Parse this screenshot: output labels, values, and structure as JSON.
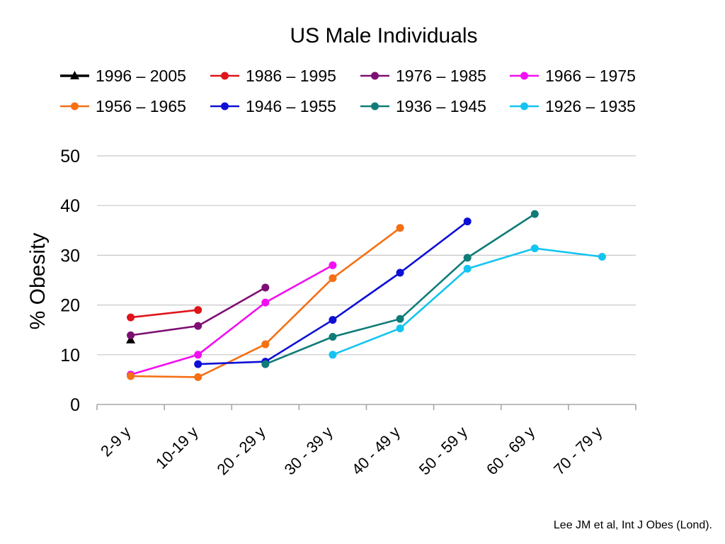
{
  "chart_data": {
    "type": "line",
    "title": "US Male Individuals",
    "xlabel": "",
    "ylabel": "% Obesity",
    "ylim": [
      0,
      50
    ],
    "yticks": [
      0,
      10,
      20,
      30,
      40,
      50
    ],
    "grid": true,
    "legend_position": "top",
    "categories": [
      "2-9 y",
      "10-19 y",
      "20 - 29 y",
      "30 - 39 y",
      "40 - 49 y",
      "50 - 59 y",
      "60 - 69 y",
      "70 - 79 y"
    ],
    "series": [
      {
        "name": "1996 – 2005",
        "color": "#000000",
        "marker": "triangle",
        "values": [
          13.0,
          null,
          null,
          null,
          null,
          null,
          null,
          null
        ]
      },
      {
        "name": "1986 – 1995",
        "color": "#e0141b",
        "marker": "circle",
        "values": [
          17.5,
          19.0,
          null,
          null,
          null,
          null,
          null,
          null
        ]
      },
      {
        "name": "1976 – 1985",
        "color": "#7d0f73",
        "marker": "circle",
        "values": [
          13.9,
          15.8,
          23.5,
          null,
          null,
          null,
          null,
          null
        ]
      },
      {
        "name": "1966 – 1975",
        "color": "#f20ff2",
        "marker": "circle",
        "values": [
          6.0,
          10.0,
          20.5,
          28.0,
          null,
          null,
          null,
          null
        ]
      },
      {
        "name": "1956 – 1965",
        "color": "#f57014",
        "marker": "circle",
        "values": [
          5.7,
          5.5,
          12.1,
          25.4,
          35.5,
          null,
          null,
          null
        ]
      },
      {
        "name": "1946 – 1955",
        "color": "#0d0fd6",
        "marker": "circle",
        "values": [
          null,
          8.1,
          8.6,
          17.0,
          26.5,
          36.8,
          null,
          null
        ]
      },
      {
        "name": "1936 – 1945",
        "color": "#0f7c78",
        "marker": "circle",
        "values": [
          null,
          null,
          8.1,
          13.6,
          17.2,
          29.5,
          38.3,
          null
        ]
      },
      {
        "name": "1926 – 1935",
        "color": "#14c4f0",
        "marker": "circle",
        "values": [
          null,
          null,
          null,
          10.0,
          15.3,
          27.3,
          31.4,
          29.7
        ]
      }
    ]
  },
  "footer": {
    "source": "Lee JM et al, Int J Obes (Lond)."
  }
}
